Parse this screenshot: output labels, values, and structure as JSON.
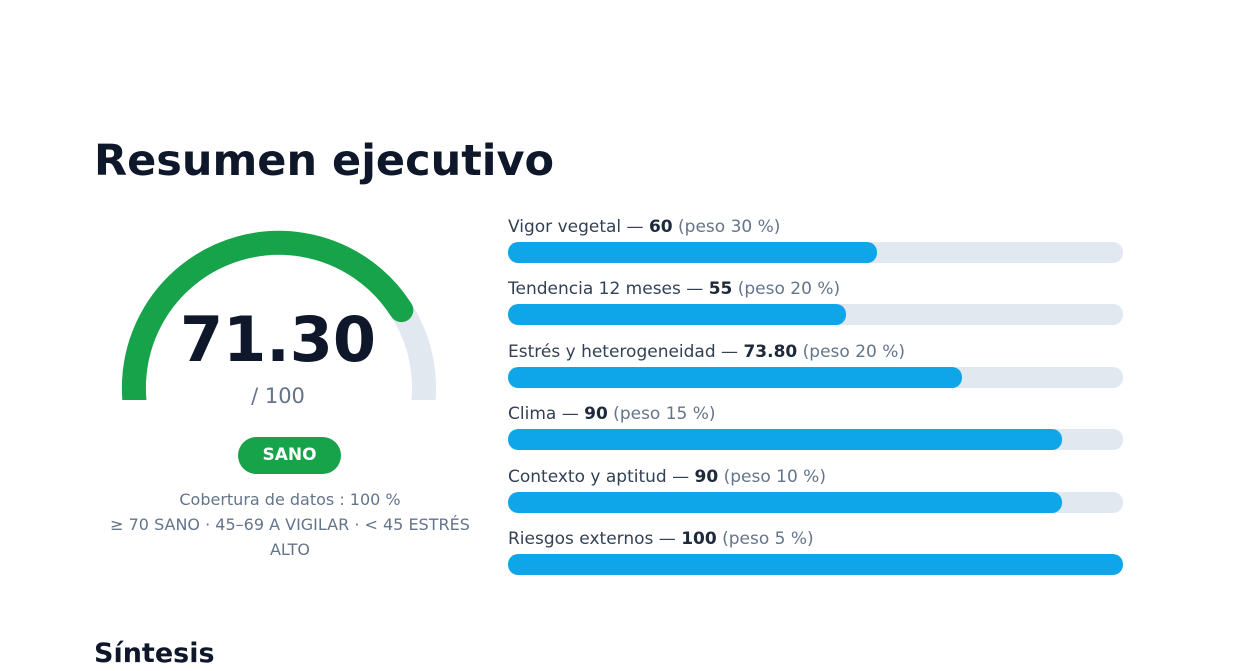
{
  "page_title": "Resumen ejecutivo",
  "gauge": {
    "score": "71.30",
    "score_value": 71.3,
    "max": 100,
    "out_of_label": "/ 100",
    "status": "SANO",
    "status_color": "#16a34a",
    "track_color": "#e2e8f0",
    "coverage": "Cobertura de datos : 100 %",
    "legend": "≥ 70 SANO · 45–69 A VIGILAR · < 45 ESTRÉS ALTO"
  },
  "bar_color": "#0ea5e9",
  "indicators": [
    {
      "name": "Vigor vegetal",
      "sep": " — ",
      "value": "60",
      "value_num": 60,
      "weight": " (peso 30 %)"
    },
    {
      "name": "Tendencia 12 meses",
      "sep": " — ",
      "value": "55",
      "value_num": 55,
      "weight": " (peso 20 %)"
    },
    {
      "name": "Estrés y heterogeneidad",
      "sep": " — ",
      "value": "73.80",
      "value_num": 73.8,
      "weight": " (peso 20 %)"
    },
    {
      "name": "Clima",
      "sep": " — ",
      "value": "90",
      "value_num": 90,
      "weight": " (peso 15 %)"
    },
    {
      "name": "Contexto y aptitud",
      "sep": " — ",
      "value": "90",
      "value_num": 90,
      "weight": " (peso 10 %)"
    },
    {
      "name": "Riesgos externos",
      "sep": " — ",
      "value": "100",
      "value_num": 100,
      "weight": " (peso 5 %)"
    }
  ],
  "next_section_title": "Síntesis"
}
